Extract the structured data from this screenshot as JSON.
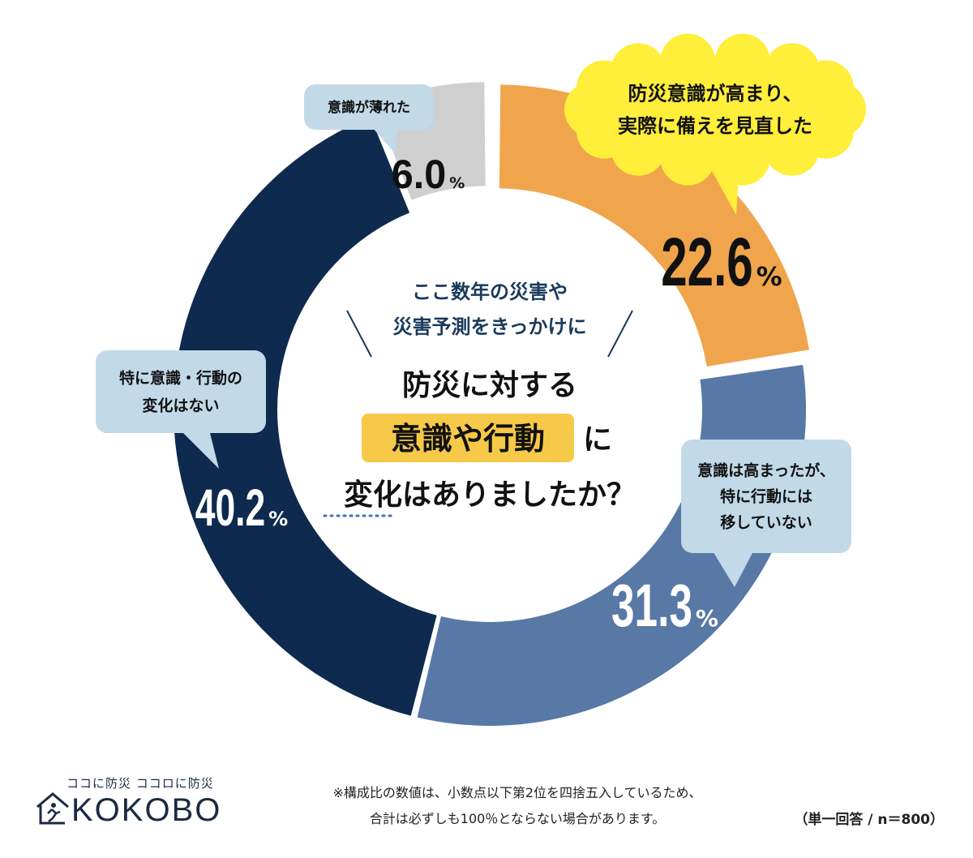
{
  "chart_data": {
    "type": "pie",
    "variant": "donut",
    "slices": [
      {
        "label": "防災意識が高まり、実際に備えを見直した",
        "label_lines": [
          "防災意識が高まり、",
          "実際に備えを見直した"
        ],
        "value": 22.6,
        "color": "#f0a54c",
        "text_color": "#111111"
      },
      {
        "label": "意識は高まったが、特に行動には移していない",
        "label_lines": [
          "意識は高まったが、",
          "特に行動には",
          "移していない"
        ],
        "value": 31.3,
        "color": "#5878a6",
        "text_color": "#ffffff"
      },
      {
        "label": "特に意識・行動の変化はない",
        "label_lines": [
          "特に意識・行動の",
          "変化はない"
        ],
        "value": 40.2,
        "color": "#0e2a4e",
        "text_color": "#ffffff"
      },
      {
        "label": "意識が薄れた",
        "label_lines": [
          "意識が薄れた"
        ],
        "value": 6.0,
        "color": "#cfcfcf",
        "text_color": "#111111"
      }
    ],
    "value_format": "one-decimal",
    "unit": "%",
    "center": {
      "lead_lines": [
        "ここ数年の災害や",
        "災害予測をきっかけに"
      ],
      "q_line1": "防災に対する",
      "q_highlight": "意識や行動",
      "q_after_highlight": "に",
      "q_line3": "変化はありましたか？"
    },
    "bubble_colors": {
      "highlight_bubble": "#ffee3a",
      "normal_bubble": "#c2d9e8",
      "question_highlight": "#f7c948"
    }
  },
  "footer": {
    "logo_tagline": "ココに防災 ココロに防災",
    "logo_word": "KOKOBO",
    "note_line1": "※構成比の数値は、小数点以下第2位を四捨五入しているため、",
    "note_line2": "合計は必ずしも100％とならない場合があります。",
    "sample": "（単一回答 / n＝800）"
  }
}
